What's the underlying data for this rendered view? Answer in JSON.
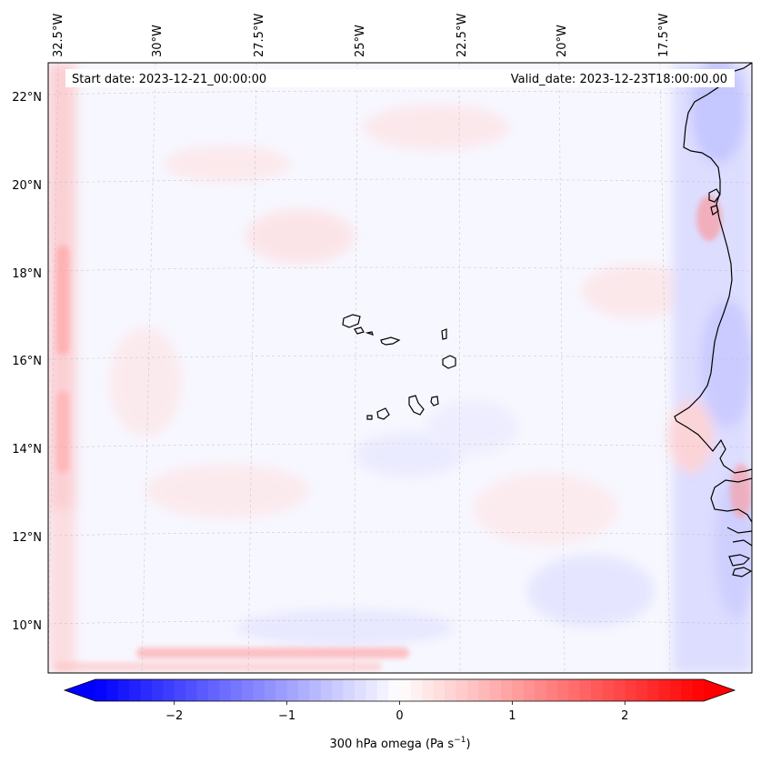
{
  "map": {
    "start_date": "Start date: 2023-12-21_00:00:00",
    "valid_date": "Valid_date: 2023-12-23T18:00:00.00",
    "variable": "300 hPa omega",
    "units": "Pa s",
    "units_exponent": "−1",
    "lon_labels": [
      "32.5°W",
      "30°W",
      "27.5°W",
      "25°W",
      "22.5°W",
      "20°W",
      "17.5°W"
    ],
    "lat_labels": [
      "22°N",
      "20°N",
      "18°N",
      "16°N",
      "14°N",
      "12°N",
      "10°N"
    ]
  },
  "colorbar": {
    "min": -2.7,
    "max": 2.7,
    "ticks": [
      -2,
      -1,
      0,
      1,
      2
    ],
    "tick_labels": [
      "−2",
      "−1",
      "0",
      "1",
      "2"
    ],
    "colors": {
      "low": "#0000ff",
      "mid": "#ffffff",
      "high": "#ff0000"
    }
  }
}
